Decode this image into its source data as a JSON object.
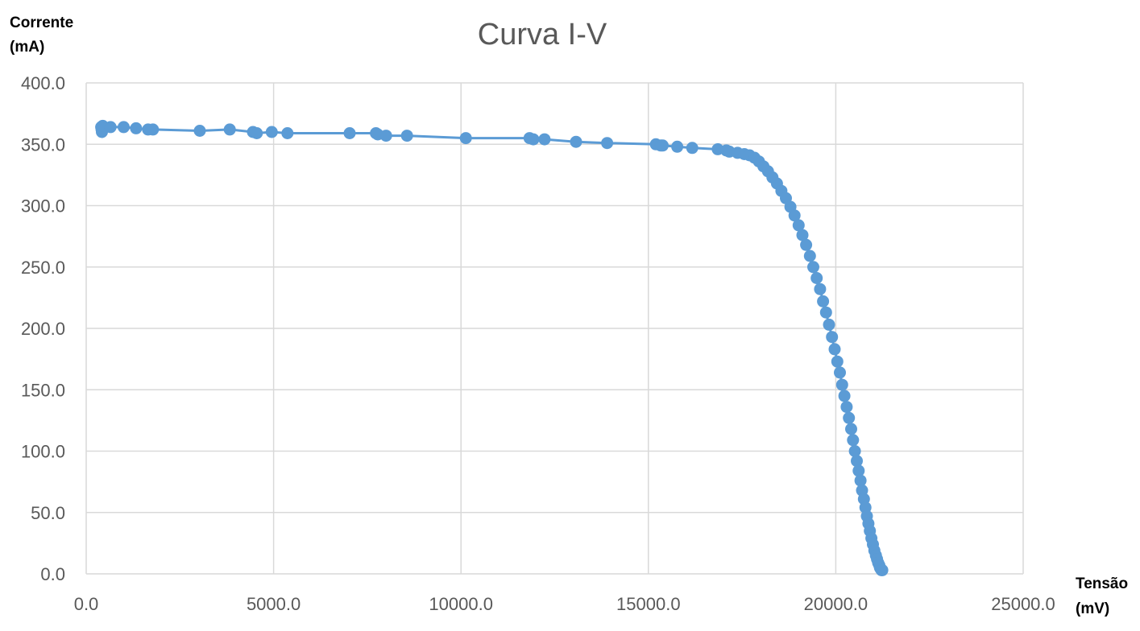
{
  "chart_data": {
    "type": "scatter",
    "title": "Curva I-V",
    "ylabel_line1": "Corrente",
    "ylabel_line2": "(mA)",
    "xlabel_line1": "Tensão",
    "xlabel_line2": "(mV)",
    "xlim": [
      0,
      25000
    ],
    "ylim": [
      0,
      400
    ],
    "x_ticks": [
      0,
      5000,
      10000,
      15000,
      20000,
      25000
    ],
    "x_tick_labels": [
      "0.0",
      "5000.0",
      "10000.0",
      "15000.0",
      "20000.0",
      "25000.0"
    ],
    "y_ticks": [
      0,
      50,
      100,
      150,
      200,
      250,
      300,
      350,
      400
    ],
    "y_tick_labels": [
      "0.0",
      "50.0",
      "100.0",
      "150.0",
      "200.0",
      "250.0",
      "300.0",
      "350.0",
      "400.0"
    ],
    "grid": true,
    "legend": "none",
    "series_color": "#5B9BD5",
    "grid_color": "#D9D9D9",
    "series": [
      {
        "x": [
          400,
          410,
          420,
          430,
          440,
          650,
          1000,
          1330,
          1650,
          1780,
          3030,
          3830,
          4450,
          4550,
          4950,
          5370,
          7030,
          7730,
          7780,
          8000,
          8560,
          10130,
          11830,
          11930,
          12230,
          13070,
          13900,
          15200,
          15330,
          15380,
          15770,
          16170,
          16850,
          17080,
          17160,
          17380,
          17560,
          17700,
          17830,
          17950,
          18070,
          18190,
          18310,
          18430,
          18550,
          18670,
          18790,
          18900,
          19010,
          19110,
          19210,
          19310,
          19400,
          19490,
          19580,
          19660,
          19740,
          19820,
          19900,
          19970,
          20040,
          20110,
          20170,
          20230,
          20290,
          20350,
          20410,
          20460,
          20510,
          20560,
          20610,
          20660,
          20700,
          20750,
          20790,
          20830,
          20870,
          20910,
          20950,
          20990,
          21030,
          21070,
          21100,
          21130,
          21160,
          21180,
          21200,
          21220,
          21240
        ],
        "y": [
          364,
          362,
          360,
          363,
          365,
          364,
          364,
          363,
          362,
          362,
          361,
          362,
          360,
          359,
          360,
          359,
          359,
          359,
          358,
          357,
          357,
          355,
          355,
          354,
          354,
          352,
          351,
          350,
          349,
          349,
          348,
          347,
          346,
          345,
          344,
          343,
          342,
          341,
          339,
          336,
          332,
          328,
          323,
          318,
          312,
          306,
          299,
          292,
          284,
          276,
          268,
          259,
          250,
          241,
          232,
          222,
          213,
          203,
          193,
          183,
          173,
          164,
          154,
          145,
          136,
          127,
          118,
          109,
          100,
          92,
          84,
          76,
          68,
          61,
          54,
          47,
          41,
          35,
          29,
          24,
          19,
          15,
          12,
          9,
          7,
          5,
          4,
          3,
          3
        ]
      }
    ]
  }
}
